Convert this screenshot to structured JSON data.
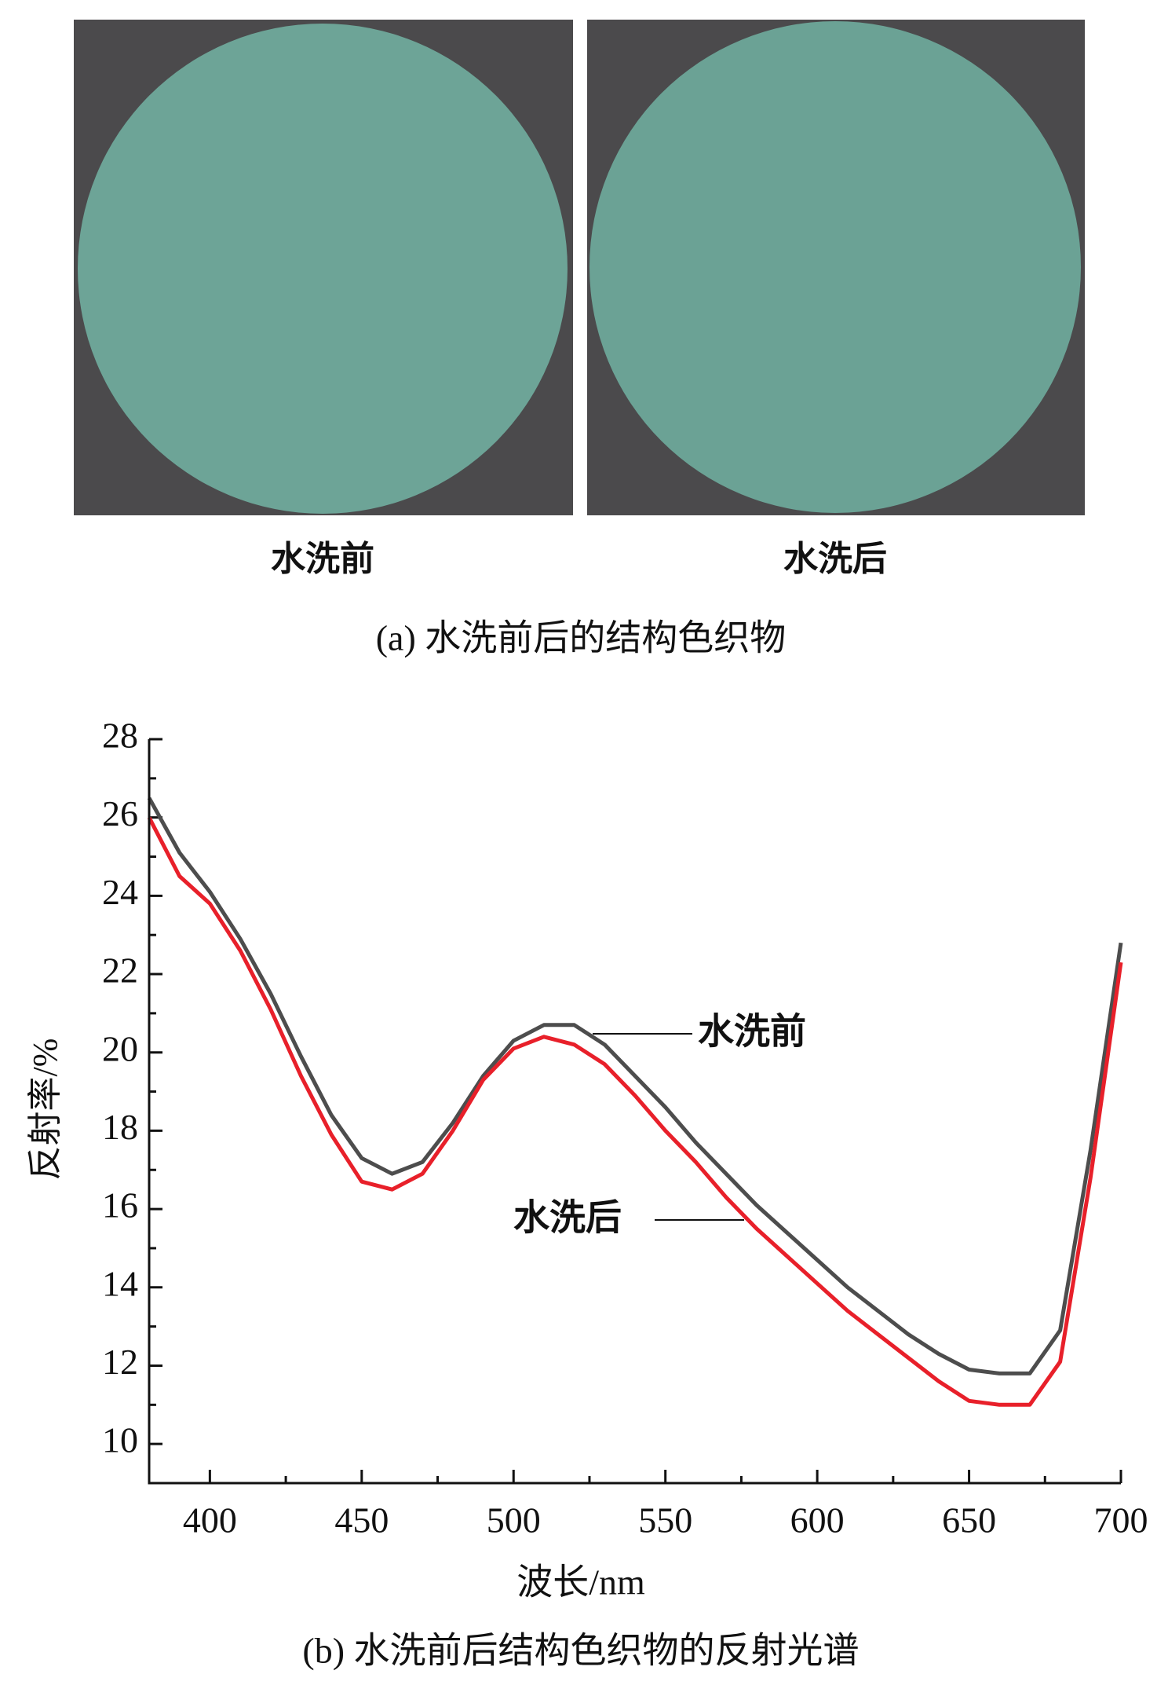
{
  "photos": {
    "labels": [
      "水洗前",
      "水洗后"
    ],
    "caption": "(a) 水洗前后的结构色织物"
  },
  "chart_data": {
    "type": "line",
    "title": "(b) 水洗前后结构色织物的反射光谱",
    "x_label": "波长/nm",
    "y_label": "反射率/%",
    "x": [
      380,
      390,
      400,
      410,
      420,
      430,
      440,
      450,
      460,
      470,
      480,
      490,
      500,
      510,
      520,
      530,
      540,
      550,
      560,
      570,
      580,
      590,
      600,
      610,
      620,
      630,
      640,
      650,
      660,
      670,
      680,
      690,
      700
    ],
    "series": [
      {
        "name": "水洗前",
        "color": "#4d4d4d",
        "values": [
          26.5,
          25.1,
          24.1,
          22.9,
          21.5,
          19.9,
          18.4,
          17.3,
          16.9,
          17.2,
          18.2,
          19.4,
          20.3,
          20.7,
          20.7,
          20.2,
          19.4,
          18.6,
          17.7,
          16.9,
          16.1,
          15.4,
          14.7,
          14.0,
          13.4,
          12.8,
          12.3,
          11.9,
          11.8,
          11.8,
          12.9,
          17.5,
          22.8
        ]
      },
      {
        "name": "水洗后",
        "color": "#e8202a",
        "values": [
          26.0,
          24.5,
          23.8,
          22.6,
          21.1,
          19.4,
          17.9,
          16.7,
          16.5,
          16.9,
          18.0,
          19.3,
          20.1,
          20.4,
          20.2,
          19.7,
          18.9,
          18.0,
          17.2,
          16.3,
          15.5,
          14.8,
          14.1,
          13.4,
          12.8,
          12.2,
          11.6,
          11.1,
          11.0,
          11.0,
          12.1,
          16.8,
          22.3
        ]
      }
    ],
    "xlim": [
      380,
      700
    ],
    "xticks": [
      400,
      450,
      500,
      550,
      600,
      650,
      700
    ],
    "ylim": [
      9,
      28
    ],
    "yticks": [
      10,
      12,
      14,
      16,
      18,
      20,
      22,
      24,
      26,
      28
    ]
  }
}
